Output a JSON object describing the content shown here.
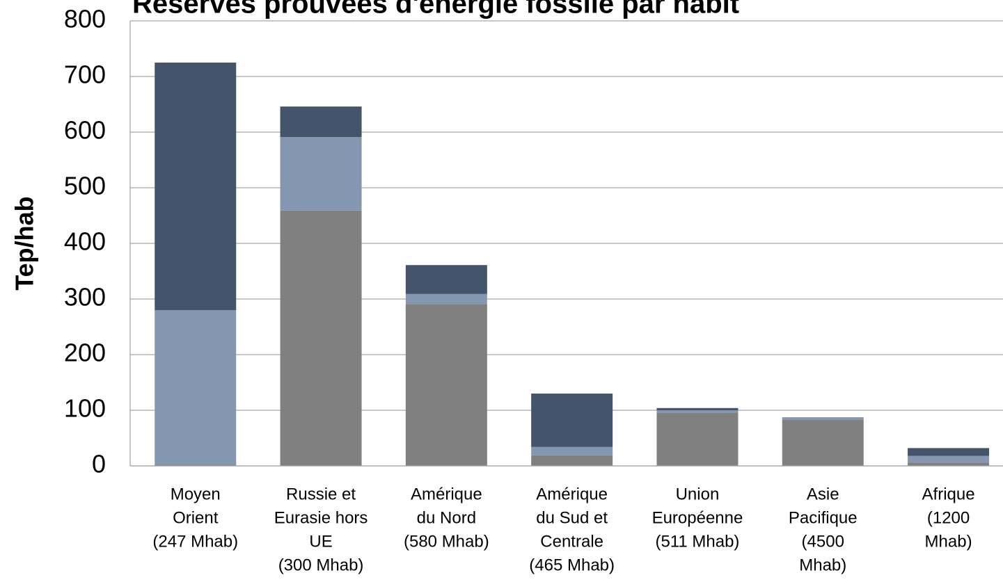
{
  "chart_data": {
    "type": "stacked_bar",
    "title": "Réserves prouvées d'énergie fossile par habit",
    "y_label": "Tep/hab",
    "categories": [
      [
        "Moyen",
        "Orient",
        "(247 Mhab)"
      ],
      [
        "Russie et",
        "Eurasie hors",
        "UE",
        "(300 Mhab)"
      ],
      [
        "Amérique",
        "du Nord",
        "(580 Mhab)"
      ],
      [
        "Amérique",
        "du Sud et",
        "Centrale",
        "(465 Mhab)"
      ],
      [
        "Union",
        "Européenne",
        "(511 Mhab)"
      ],
      [
        "Asie",
        "Pacifique",
        "(4500",
        "Mhab)"
      ],
      [
        "Afrique",
        "(1200",
        "Mhab)"
      ]
    ],
    "series": [
      {
        "color": "#808080",
        "values": [
          2,
          459,
          291,
          19,
          95,
          83,
          6
        ]
      },
      {
        "color": "#8497b0",
        "values": [
          278,
          132,
          18,
          15,
          5,
          3,
          12
        ]
      },
      {
        "color": "#44546a",
        "values": [
          445,
          55,
          52,
          96,
          4,
          1,
          14
        ]
      }
    ],
    "ylim": [
      0,
      800
    ],
    "yticks": [
      0,
      100,
      200,
      300,
      400,
      500,
      600,
      700,
      800
    ],
    "grid": true
  }
}
